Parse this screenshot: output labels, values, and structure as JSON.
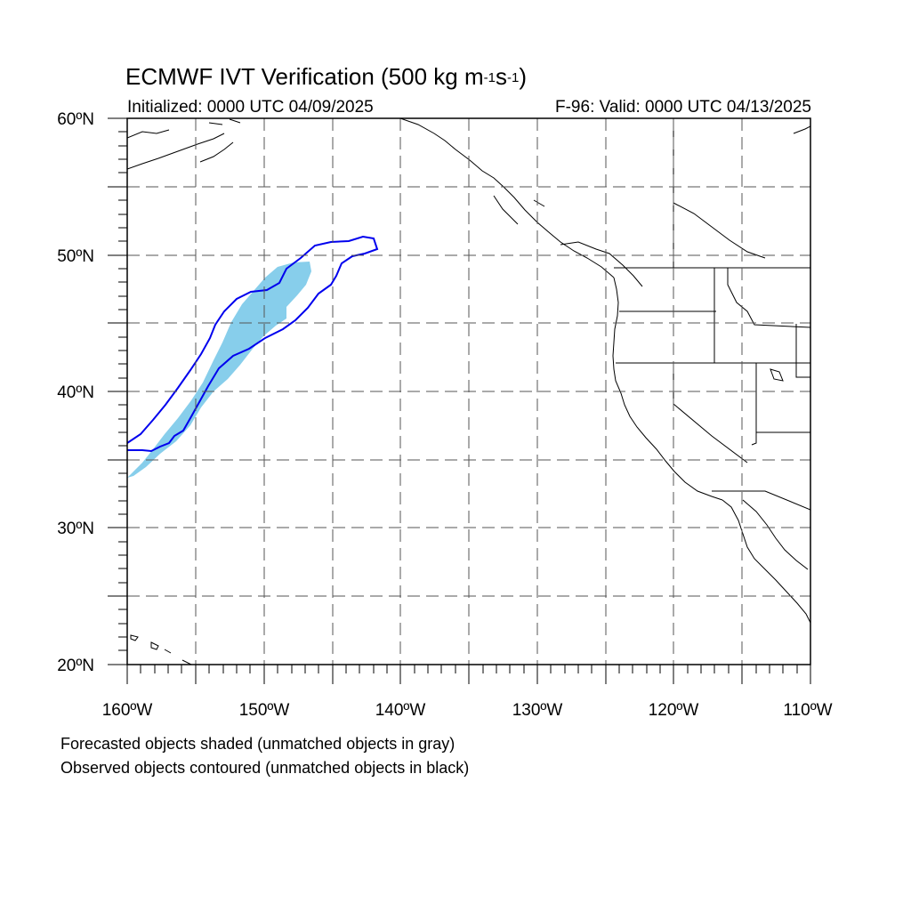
{
  "title": {
    "text": "ECMWF IVT Verification (500 kg m",
    "sup1": "-1",
    "mid": "s",
    "sup2": "-1",
    "end": ")"
  },
  "subtitle_left": "Initialized: 0000 UTC 04/09/2025",
  "subtitle_right": "F-96: Valid: 0000 UTC 04/13/2025",
  "lat_labels": [
    "60ºN",
    "50ºN",
    "40ºN",
    "30ºN",
    "20ºN"
  ],
  "lon_labels": [
    "160ºW",
    "150ºW",
    "140ºW",
    "130ºW",
    "120ºW",
    "110ºW"
  ],
  "notes": [
    "Forecasted objects shaded (unmatched objects in gray)",
    "Observed objects contoured (unmatched objects in black)"
  ],
  "colors": {
    "forecast_fill": "#87ceeb",
    "observed_contour": "#0000ee",
    "grid": "#000000"
  }
}
